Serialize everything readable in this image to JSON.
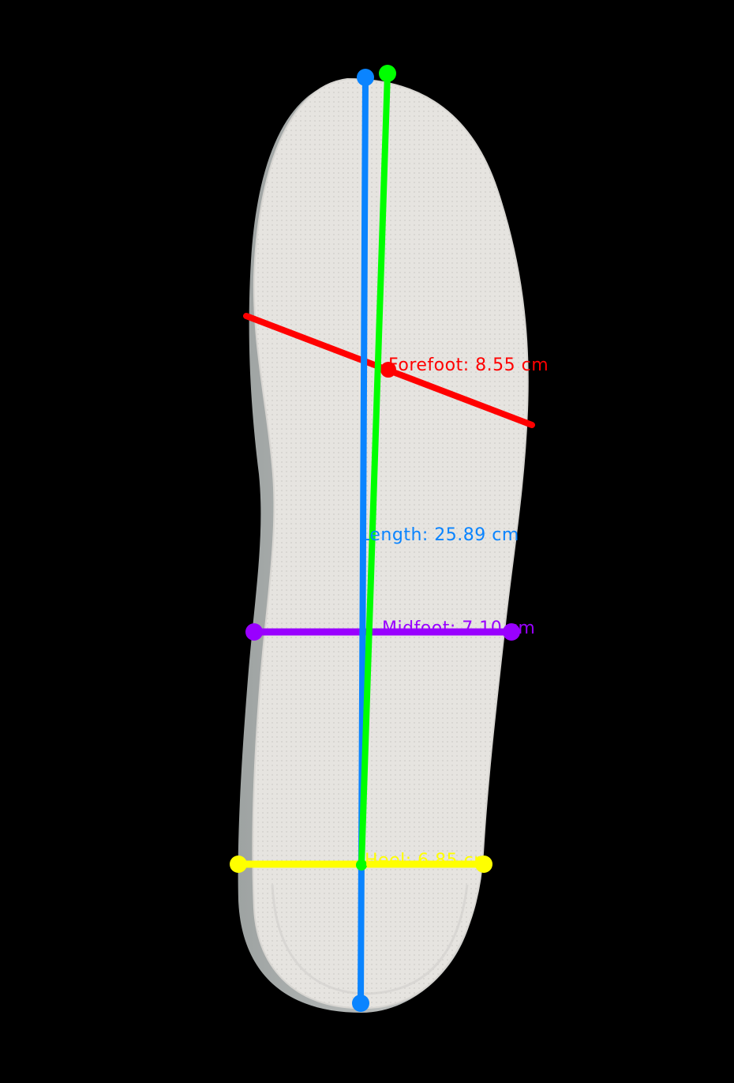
{
  "measurements": {
    "forefoot": {
      "label": "Forefoot: 8.55 cm",
      "color": "#ff0000"
    },
    "length": {
      "label": "Length: 25.89 cm",
      "color": "#0a84ff"
    },
    "midfoot": {
      "label": "Midfoot: 7.10 cm",
      "color": "#9900ff"
    },
    "heel": {
      "label": "Heel: 6.85 cm",
      "color": "#ffff00"
    },
    "axis": {
      "color": "#00ff00"
    }
  },
  "colors": {
    "background": "#000000",
    "insole_fill": "#e4e2de",
    "insole_edge": "#c9cbca"
  }
}
